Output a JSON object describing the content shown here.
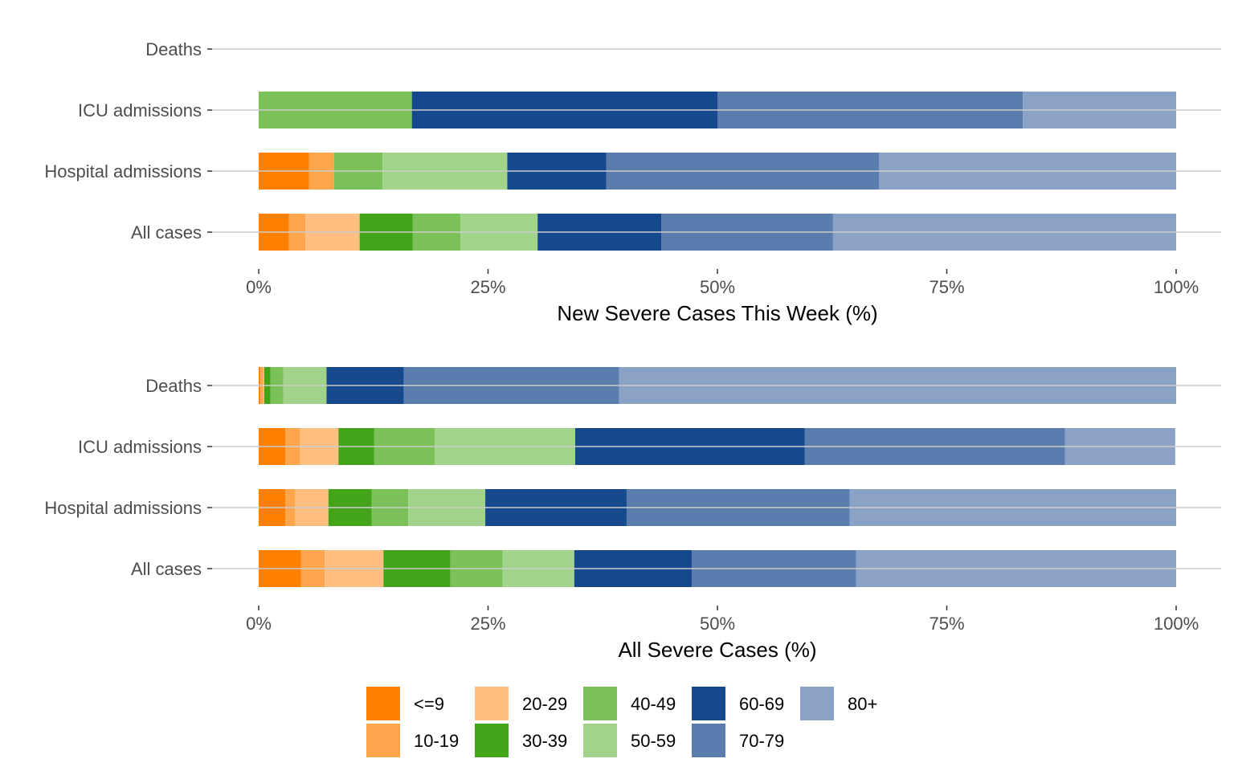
{
  "chart_data": [
    {
      "type": "bar",
      "orientation": "horizontal",
      "stacked": "percent",
      "xlabel": "New Severe Cases This Week (%)",
      "categories": [
        "Deaths",
        "ICU admissions",
        "Hospital admissions",
        "All cases"
      ],
      "x_ticks": [
        "0%",
        "25%",
        "50%",
        "75%",
        "100%"
      ],
      "xlim": [
        0,
        100
      ],
      "grid": "horizontal",
      "series": [
        {
          "name": "<=9",
          "values": [
            0,
            0,
            5.5,
            3.3
          ]
        },
        {
          "name": "10-19",
          "values": [
            0,
            0,
            2.7,
            1.8
          ]
        },
        {
          "name": "20-29",
          "values": [
            0,
            0,
            0,
            5.9
          ]
        },
        {
          "name": "30-39",
          "values": [
            0,
            0,
            0,
            5.8
          ]
        },
        {
          "name": "40-49",
          "values": [
            0,
            16.7,
            5.3,
            5.2
          ]
        },
        {
          "name": "50-59",
          "values": [
            0,
            0,
            13.6,
            8.4
          ]
        },
        {
          "name": "60-69",
          "values": [
            0,
            33.3,
            10.8,
            13.5
          ]
        },
        {
          "name": "70-79",
          "values": [
            0,
            33.3,
            29.7,
            18.7
          ]
        },
        {
          "name": "80+",
          "values": [
            0,
            16.7,
            32.4,
            37.4
          ]
        }
      ]
    },
    {
      "type": "bar",
      "orientation": "horizontal",
      "stacked": "percent",
      "xlabel": "All Severe Cases (%)",
      "categories": [
        "Deaths",
        "ICU admissions",
        "Hospital admissions",
        "All cases"
      ],
      "x_ticks": [
        "0%",
        "25%",
        "50%",
        "75%",
        "100%"
      ],
      "xlim": [
        0,
        100
      ],
      "grid": "horizontal",
      "series": [
        {
          "name": "<=9",
          "values": [
            0.2,
            2.9,
            2.9,
            4.6
          ]
        },
        {
          "name": "10-19",
          "values": [
            0.3,
            1.6,
            1.1,
            2.6
          ]
        },
        {
          "name": "20-29",
          "values": [
            0.1,
            4.2,
            3.6,
            6.4
          ]
        },
        {
          "name": "30-39",
          "values": [
            0.7,
            3.9,
            4.7,
            7.3
          ]
        },
        {
          "name": "40-49",
          "values": [
            1.4,
            6.6,
            4.0,
            5.7
          ]
        },
        {
          "name": "50-59",
          "values": [
            4.7,
            15.3,
            8.4,
            7.8
          ]
        },
        {
          "name": "60-69",
          "values": [
            8.4,
            25.0,
            15.4,
            12.8
          ]
        },
        {
          "name": "70-79",
          "values": [
            23.5,
            28.4,
            24.3,
            17.9
          ]
        },
        {
          "name": "80+",
          "values": [
            60.7,
            12.0,
            35.6,
            34.9
          ]
        }
      ]
    }
  ],
  "legend": {
    "position": "bottom",
    "items": [
      {
        "label": "<=9",
        "color": "#ff7f00"
      },
      {
        "label": "10-19",
        "color": "#ffa64d"
      },
      {
        "label": "20-29",
        "color": "#ffbf80"
      },
      {
        "label": "30-39",
        "color": "#43a319"
      },
      {
        "label": "40-49",
        "color": "#7bc15a"
      },
      {
        "label": "50-59",
        "color": "#a1d38a"
      },
      {
        "label": "60-69",
        "color": "#15488c"
      },
      {
        "label": "70-79",
        "color": "#5a7dae"
      },
      {
        "label": "80+",
        "color": "#89a2c5"
      }
    ]
  },
  "colors": {
    "grid": "#cccccc",
    "tick": "#4d4d4d",
    "text": "#000000"
  }
}
